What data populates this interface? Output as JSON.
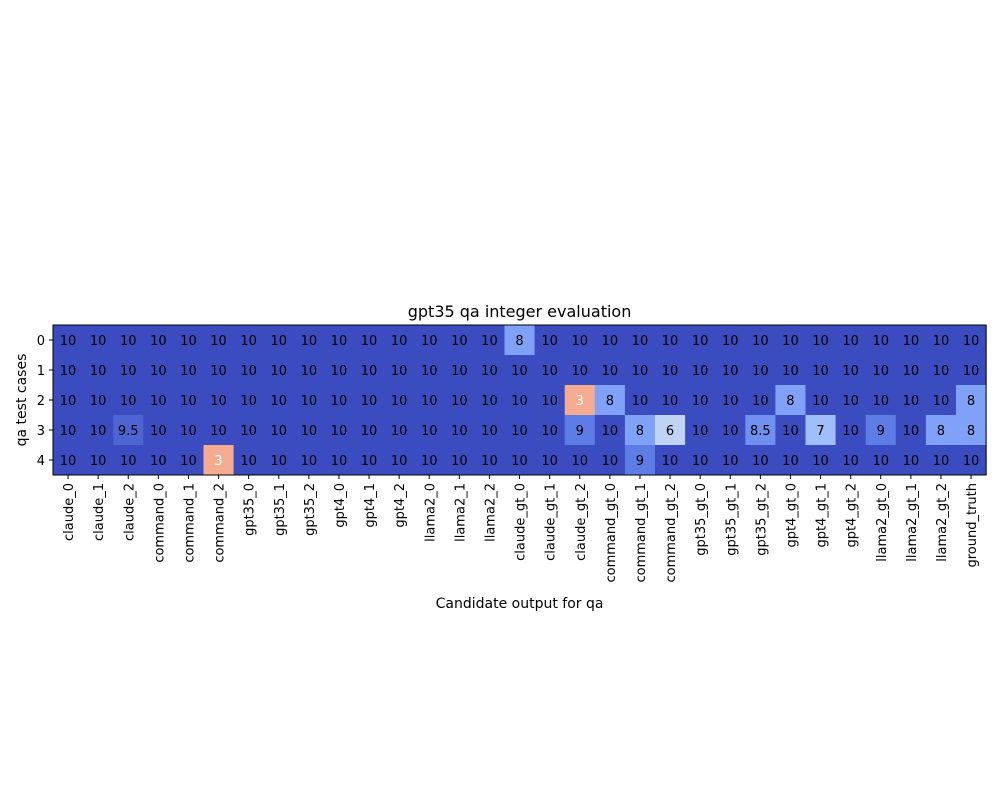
{
  "chart_data": {
    "type": "heatmap",
    "title": "gpt35 qa integer evaluation",
    "xlabel": "Candidate output for qa",
    "ylabel": "qa test cases",
    "x_categories": [
      "claude_0",
      "claude_1",
      "claude_2",
      "command_0",
      "command_1",
      "command_2",
      "gpt35_0",
      "gpt35_1",
      "gpt35_2",
      "gpt4_0",
      "gpt4_1",
      "gpt4_2",
      "llama2_0",
      "llama2_1",
      "llama2_2",
      "claude_gt_0",
      "claude_gt_1",
      "claude_gt_2",
      "command_gt_0",
      "command_gt_1",
      "command_gt_2",
      "gpt35_gt_0",
      "gpt35_gt_1",
      "gpt35_gt_2",
      "gpt4_gt_0",
      "gpt4_gt_1",
      "gpt4_gt_2",
      "llama2_gt_0",
      "llama2_gt_1",
      "llama2_gt_2",
      "ground_truth"
    ],
    "y_categories": [
      "0",
      "1",
      "2",
      "3",
      "4"
    ],
    "values": [
      [
        10,
        10,
        10,
        10,
        10,
        10,
        10,
        10,
        10,
        10,
        10,
        10,
        10,
        10,
        10,
        8,
        10,
        10,
        10,
        10,
        10,
        10,
        10,
        10,
        10,
        10,
        10,
        10,
        10,
        10,
        10
      ],
      [
        10,
        10,
        10,
        10,
        10,
        10,
        10,
        10,
        10,
        10,
        10,
        10,
        10,
        10,
        10,
        10,
        10,
        10,
        10,
        10,
        10,
        10,
        10,
        10,
        10,
        10,
        10,
        10,
        10,
        10,
        10
      ],
      [
        10,
        10,
        10,
        10,
        10,
        10,
        10,
        10,
        10,
        10,
        10,
        10,
        10,
        10,
        10,
        10,
        10,
        3,
        8,
        10,
        10,
        10,
        10,
        10,
        8,
        10,
        10,
        10,
        10,
        10,
        8
      ],
      [
        10,
        10,
        9.5,
        10,
        10,
        10,
        10,
        10,
        10,
        10,
        10,
        10,
        10,
        10,
        10,
        10,
        10,
        9,
        10,
        8,
        6,
        10,
        10,
        8.5,
        10,
        7,
        10,
        9,
        10,
        8,
        8
      ],
      [
        10,
        10,
        10,
        10,
        10,
        3,
        10,
        10,
        10,
        10,
        10,
        10,
        10,
        10,
        10,
        10,
        10,
        10,
        10,
        9,
        10,
        10,
        10,
        10,
        10,
        10,
        10,
        10,
        10,
        10,
        10
      ]
    ],
    "colormap": "coolwarm_r",
    "color_range": [
      0,
      10
    ],
    "grid": false
  }
}
